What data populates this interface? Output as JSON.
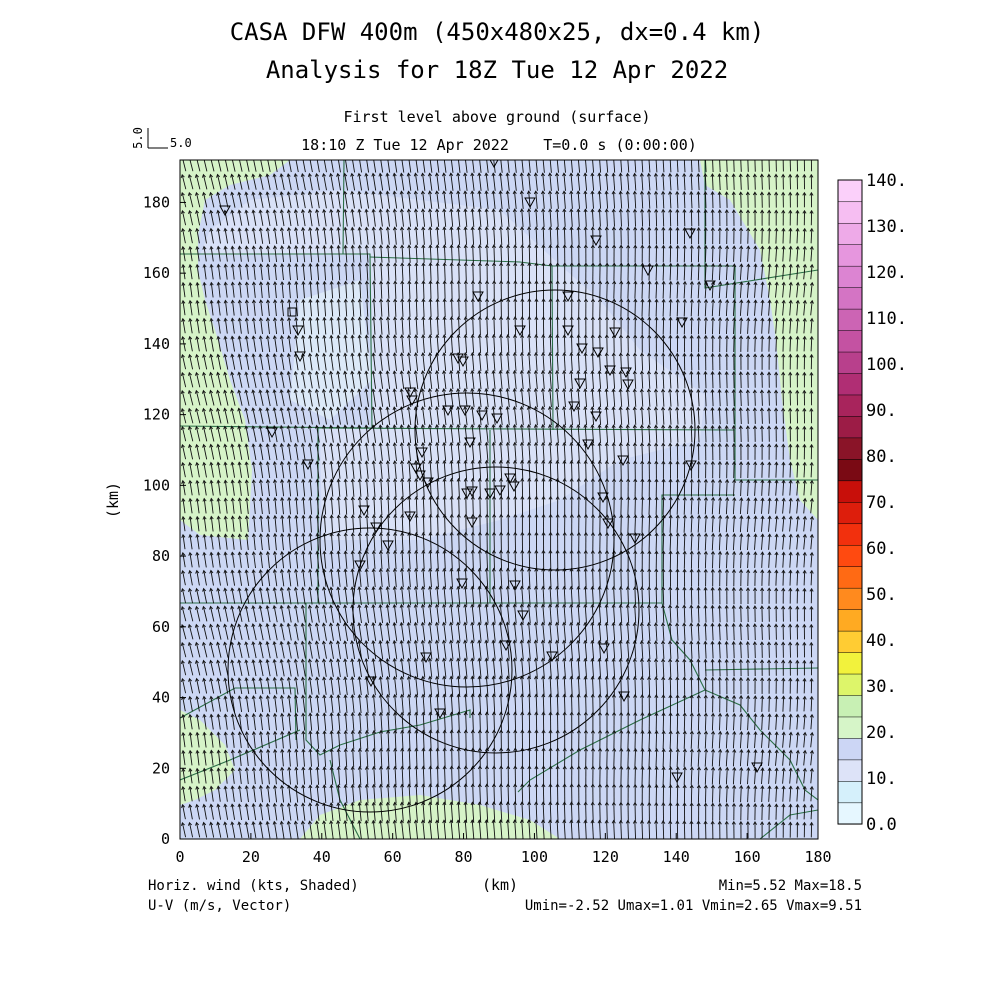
{
  "header": {
    "title_line1": "CASA DFW 400m (450x480x25, dx=0.4 km)",
    "title_line2": "Analysis for 18Z Tue 12 Apr 2022",
    "level": "First level above ground (surface)",
    "valid_time": "18:10 Z Tue 12 Apr 2022",
    "forecast_time": "T=0.0 s (0:00:00)",
    "ref_vector_vertical": "5.0",
    "ref_vector_horizontal": "5.0"
  },
  "axes": {
    "x_label": "(km)",
    "y_label": "(km)",
    "x_range": [
      0,
      180
    ],
    "y_range": [
      0,
      192
    ],
    "x_ticks": [
      "0",
      "20",
      "40",
      "60",
      "80",
      "100",
      "120",
      "140",
      "160",
      "180"
    ],
    "y_ticks": [
      "0",
      "20",
      "40",
      "60",
      "80",
      "100",
      "120",
      "140",
      "160",
      "180"
    ]
  },
  "footer": {
    "left_line1": "Horiz. wind (kts, Shaded)",
    "left_line2": "U-V (m/s, Vector)",
    "right_line1": "Min=5.52 Max=18.5",
    "right_line2": "Umin=-2.52 Umax=1.01 Vmin=2.65 Vmax=9.51"
  },
  "colorbar": {
    "labels": [
      "0.0",
      "10.",
      "20.",
      "30.",
      "40.",
      "50.",
      "60.",
      "70.",
      "80.",
      "90.",
      "100.",
      "110.",
      "120.",
      "130.",
      "140."
    ],
    "colors": [
      "#e6f7ff",
      "#d5f0fb",
      "#dde3f8",
      "#ccd6f5",
      "#d6f5c8",
      "#c8f0b4",
      "#ddf56a",
      "#f2f23c",
      "#ffcc33",
      "#ffaa22",
      "#ff8a1e",
      "#ff6a14",
      "#ff4a10",
      "#f2300d",
      "#dd1e0c",
      "#c80f0a",
      "#7a0a14",
      "#8a1428",
      "#9c1c46",
      "#a8245c",
      "#b02e74",
      "#b8408c",
      "#c452a2",
      "#cc64b4",
      "#d474c4",
      "#dc84d2",
      "#e696de",
      "#eeaae8",
      "#f6bef2",
      "#fbd0fa"
    ]
  },
  "icons": {
    "station": "inverted-triangle-icon",
    "radar": "radar-square-icon"
  }
}
